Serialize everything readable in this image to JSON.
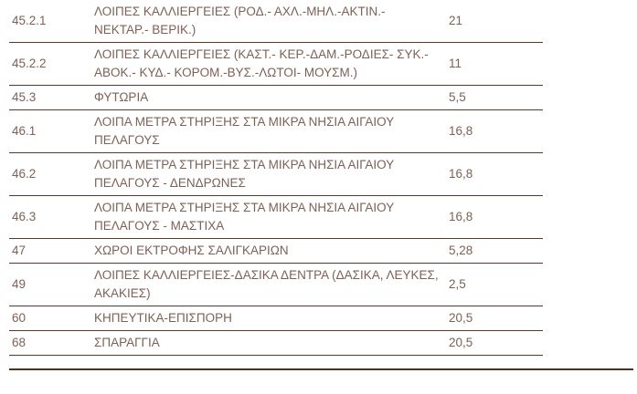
{
  "colors": {
    "text": "#7d6156",
    "row_line": "#57392a",
    "bottom_rule": "#4b3122",
    "background": "#ffffff"
  },
  "table": {
    "rows": [
      {
        "code": "45.2.1",
        "description": "ΛΟΙΠΕΣ ΚΑΛΛΙΕΡΓΕΙΕΣ (ΡΟΔ.- ΑΧΛ.-ΜΗΛ.-ΑΚΤΙΝ.- ΝΕΚΤΑΡ.- ΒΕΡΙΚ.)",
        "value": "21"
      },
      {
        "code": "45.2.2",
        "description": "ΛΟΙΠΕΣ ΚΑΛΛΙΕΡΓΕΙΕΣ (ΚΑΣΤ.- ΚΕΡ.-ΔΑΜ.-ΡΟΔΙΕΣ- ΣΥΚ.-ΑΒΟΚ.- ΚΥΔ.- ΚΟΡΟΜ.-ΒΥΣ.-ΛΩΤΟΙ- ΜΟΥΣΜ.)",
        "value": "11"
      },
      {
        "code": "45.3",
        "description": "ΦΥΤΩΡΙΑ",
        "value": "5,5"
      },
      {
        "code": "46.1",
        "description": "ΛΟΙΠΑ ΜΕΤΡΑ ΣΤΗΡΙΞΗΣ ΣΤΑ ΜΙΚΡΑ ΝΗΣΙΑ ΑΙΓΑΙΟΥ ΠΕΛΑΓΟΥΣ",
        "value": "16,8"
      },
      {
        "code": "46.2",
        "description": "ΛΟΙΠΑ ΜΕΤΡΑ ΣΤΗΡΙΞΗΣ ΣΤΑ ΜΙΚΡΑ ΝΗΣΙΑ ΑΙΓΑΙΟΥ ΠΕΛΑΓΟΥΣ - ΔΕΝΔΡΩΝΕΣ",
        "value": "16,8"
      },
      {
        "code": "46.3",
        "description": "ΛΟΙΠΑ ΜΕΤΡΑ ΣΤΗΡΙΞΗΣ ΣΤΑ ΜΙΚΡΑ ΝΗΣΙΑ ΑΙΓΑΙΟΥ ΠΕΛΑΓΟΥΣ - ΜΑΣΤΙΧΑ",
        "value": "16,8"
      },
      {
        "code": "47",
        "description": "ΧΩΡΟΙ ΕΚΤΡΟΦΗΣ ΣΑΛΙΓΚΑΡΙΩΝ",
        "value": "5,28"
      },
      {
        "code": "49",
        "description": "ΛΟΙΠΕΣ ΚΑΛΛΙΕΡΓΕΙΕΣ-ΔΑΣΙΚΑ ΔΕΝΤΡΑ (ΔΑΣΙΚΑ, ΛΕΥΚΕΣ, ΑΚΑΚΙΕΣ)",
        "value": "2,5"
      },
      {
        "code": "60",
        "description": "ΚΗΠΕΥΤΙΚΑ-ΕΠΙΣΠΟΡΗ",
        "value": "20,5"
      },
      {
        "code": "68",
        "description": "ΣΠΑΡΑΓΓΙΑ",
        "value": "20,5"
      }
    ]
  }
}
